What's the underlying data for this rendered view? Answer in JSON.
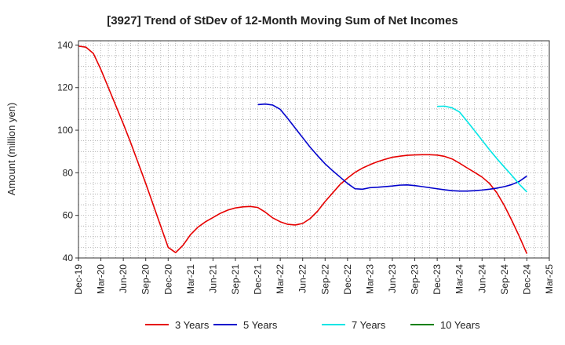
{
  "chart_data": {
    "type": "line",
    "title": "[3927]  Trend of StDev of 12-Month Moving Sum of Net Incomes",
    "xlabel": "",
    "ylabel": "Amount (million yen)",
    "ylim": [
      40,
      142
    ],
    "yticks": [
      40,
      60,
      80,
      100,
      120,
      140
    ],
    "grid": true,
    "legend_position": "bottom",
    "x_ticks": [
      "Dec-19",
      "Mar-20",
      "Jun-20",
      "Sep-20",
      "Dec-20",
      "Mar-21",
      "Jun-21",
      "Sep-21",
      "Dec-21",
      "Mar-22",
      "Jun-22",
      "Sep-22",
      "Dec-22",
      "Mar-23",
      "Jun-23",
      "Sep-23",
      "Dec-23",
      "Mar-24",
      "Jun-24",
      "Sep-24",
      "Dec-24",
      "Mar-25"
    ],
    "series": [
      {
        "name": "3 Years",
        "color": "#e60000",
        "x": [
          "2019-12",
          "2020-01",
          "2020-02",
          "2020-03",
          "2020-04",
          "2020-05",
          "2020-06",
          "2020-07",
          "2020-08",
          "2020-09",
          "2020-10",
          "2020-11",
          "2020-12",
          "2021-01",
          "2021-02",
          "2021-03",
          "2021-04",
          "2021-05",
          "2021-06",
          "2021-07",
          "2021-08",
          "2021-09",
          "2021-10",
          "2021-11",
          "2021-12",
          "2022-01",
          "2022-02",
          "2022-03",
          "2022-04",
          "2022-05",
          "2022-06",
          "2022-07",
          "2022-08",
          "2022-09",
          "2022-10",
          "2022-11",
          "2022-12",
          "2023-01",
          "2023-02",
          "2023-03",
          "2023-04",
          "2023-05",
          "2023-06",
          "2023-07",
          "2023-08",
          "2023-09",
          "2023-10",
          "2023-11",
          "2023-12",
          "2024-01",
          "2024-02",
          "2024-03",
          "2024-04",
          "2024-05",
          "2024-06",
          "2024-07",
          "2024-08",
          "2024-09",
          "2024-10",
          "2024-11",
          "2024-12"
        ],
        "values": [
          139.5,
          139,
          136,
          128.5,
          120,
          111.5,
          103,
          94,
          84.5,
          75,
          65,
          55,
          45,
          42.5,
          46,
          51,
          54.5,
          57,
          59,
          61,
          62.5,
          63.5,
          64,
          64.2,
          63.7,
          61.5,
          58.8,
          57,
          55.8,
          55.5,
          56.2,
          58.5,
          62,
          66.5,
          70.5,
          74.5,
          77.5,
          80.2,
          82.2,
          83.8,
          85.2,
          86.3,
          87.3,
          87.8,
          88.2,
          88.4,
          88.5,
          88.5,
          88.3,
          87.7,
          86.5,
          84.5,
          82.3,
          80.2,
          78,
          75,
          70.5,
          64.5,
          57.5,
          50,
          42
        ]
      },
      {
        "name": "5 Years",
        "color": "#0000cc",
        "x": [
          "2021-12",
          "2022-01",
          "2022-02",
          "2022-03",
          "2022-04",
          "2022-05",
          "2022-06",
          "2022-07",
          "2022-08",
          "2022-09",
          "2022-10",
          "2022-11",
          "2022-12",
          "2023-01",
          "2023-02",
          "2023-03",
          "2023-04",
          "2023-05",
          "2023-06",
          "2023-07",
          "2023-08",
          "2023-09",
          "2023-10",
          "2023-11",
          "2023-12",
          "2024-01",
          "2024-02",
          "2024-03",
          "2024-04",
          "2024-05",
          "2024-06",
          "2024-07",
          "2024-08",
          "2024-09",
          "2024-10",
          "2024-11",
          "2024-12"
        ],
        "values": [
          112,
          112.3,
          111.8,
          109.8,
          105.5,
          101,
          96.5,
          92,
          88,
          84.2,
          81,
          78,
          75,
          72.5,
          72.3,
          73,
          73.2,
          73.5,
          73.8,
          74.2,
          74.3,
          74,
          73.5,
          73,
          72.5,
          72,
          71.6,
          71.4,
          71.4,
          71.6,
          71.9,
          72.3,
          72.8,
          73.5,
          74.5,
          76,
          78.5
        ]
      },
      {
        "name": "7 Years",
        "color": "#00e5e5",
        "x": [
          "2023-12",
          "2024-01",
          "2024-02",
          "2024-03",
          "2024-04",
          "2024-05",
          "2024-06",
          "2024-07",
          "2024-08",
          "2024-09",
          "2024-10",
          "2024-11",
          "2024-12"
        ],
        "values": [
          111.2,
          111.3,
          110.5,
          108.5,
          104.2,
          99.8,
          95.3,
          90.8,
          86.6,
          82.6,
          78.7,
          74.6,
          71
        ]
      },
      {
        "name": "10 Years",
        "color": "#008000",
        "x": [],
        "values": []
      }
    ]
  }
}
